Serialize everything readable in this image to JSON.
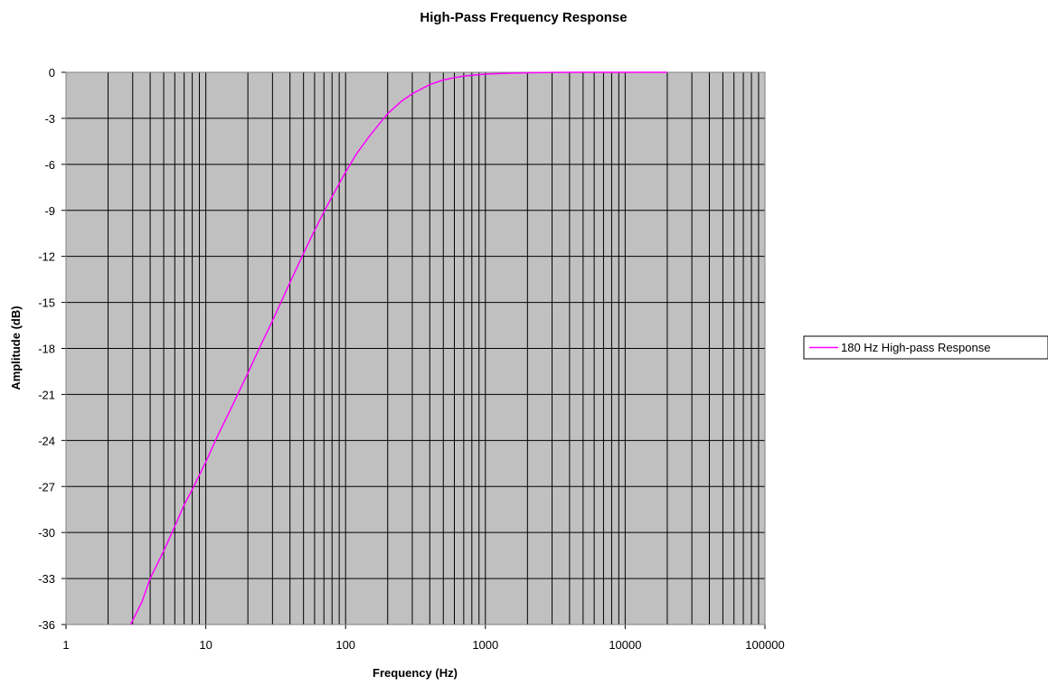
{
  "chart_data": {
    "type": "line",
    "title": "High-Pass Frequency Response",
    "xlabel": "Frequency (Hz)",
    "ylabel": "Amplitude (dB)",
    "x_scale": "log",
    "xlim": [
      1,
      100000
    ],
    "ylim": [
      -36,
      0
    ],
    "x_ticks": [
      1,
      10,
      100,
      1000,
      10000,
      100000
    ],
    "x_tick_labels": [
      "1",
      "10",
      "100",
      "1000",
      "10000",
      "100000"
    ],
    "y_ticks": [
      0,
      -3,
      -6,
      -9,
      -12,
      -15,
      -18,
      -21,
      -24,
      -27,
      -30,
      -33,
      -36
    ],
    "y_tick_labels": [
      "0",
      "-3",
      "-6",
      "-9",
      "-12",
      "-15",
      "-18",
      "-21",
      "-24",
      "-27",
      "-30",
      "-33",
      "-36"
    ],
    "grid": true,
    "legend_position": "right",
    "plot_background": "#c0c0c0",
    "series": [
      {
        "name": "180 Hz High-pass Response",
        "color": "#ff00ff",
        "x": [
          2.9,
          3.5,
          4,
          5,
          6,
          7,
          8,
          10,
          12,
          15,
          20,
          25,
          30,
          40,
          50,
          60,
          70,
          80,
          100,
          120,
          150,
          180,
          200,
          250,
          300,
          400,
          500,
          600,
          700,
          800,
          1000,
          1200,
          1500,
          2000,
          3000,
          5000,
          10000,
          20000
        ],
        "y": [
          -36,
          -34.5,
          -33,
          -31.2,
          -29.6,
          -28.2,
          -27.2,
          -25.4,
          -23.8,
          -22,
          -19.6,
          -17.7,
          -16.2,
          -13.7,
          -11.8,
          -10.3,
          -9.1,
          -8.1,
          -6.5,
          -5.3,
          -4.1,
          -3.2,
          -2.7,
          -1.9,
          -1.4,
          -0.8,
          -0.5,
          -0.35,
          -0.25,
          -0.2,
          -0.12,
          -0.09,
          -0.06,
          -0.03,
          -0.01,
          0,
          0,
          0
        ]
      }
    ]
  }
}
